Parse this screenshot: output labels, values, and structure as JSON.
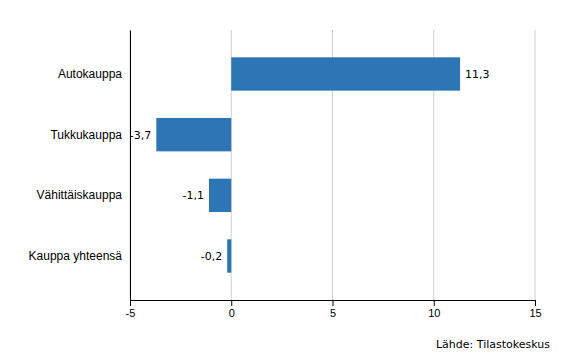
{
  "chart_data": {
    "type": "bar",
    "orientation": "horizontal",
    "categories": [
      "Kauppa yhteensä",
      "Vähittäiskauppa",
      "Tukkukauppa",
      "Autokauppa"
    ],
    "values": [
      -0.2,
      -1.1,
      -3.7,
      11.3
    ],
    "value_labels": [
      "-0,2",
      "-1,1",
      "-3,7",
      "11,3"
    ],
    "data_labels": true,
    "color": "#2E75B6",
    "xlim": [
      -5,
      15
    ],
    "xticks": [
      -5,
      0,
      5,
      10,
      15
    ],
    "grid": true,
    "annotations": [
      "Lähde: Tilastokeskus"
    ]
  }
}
